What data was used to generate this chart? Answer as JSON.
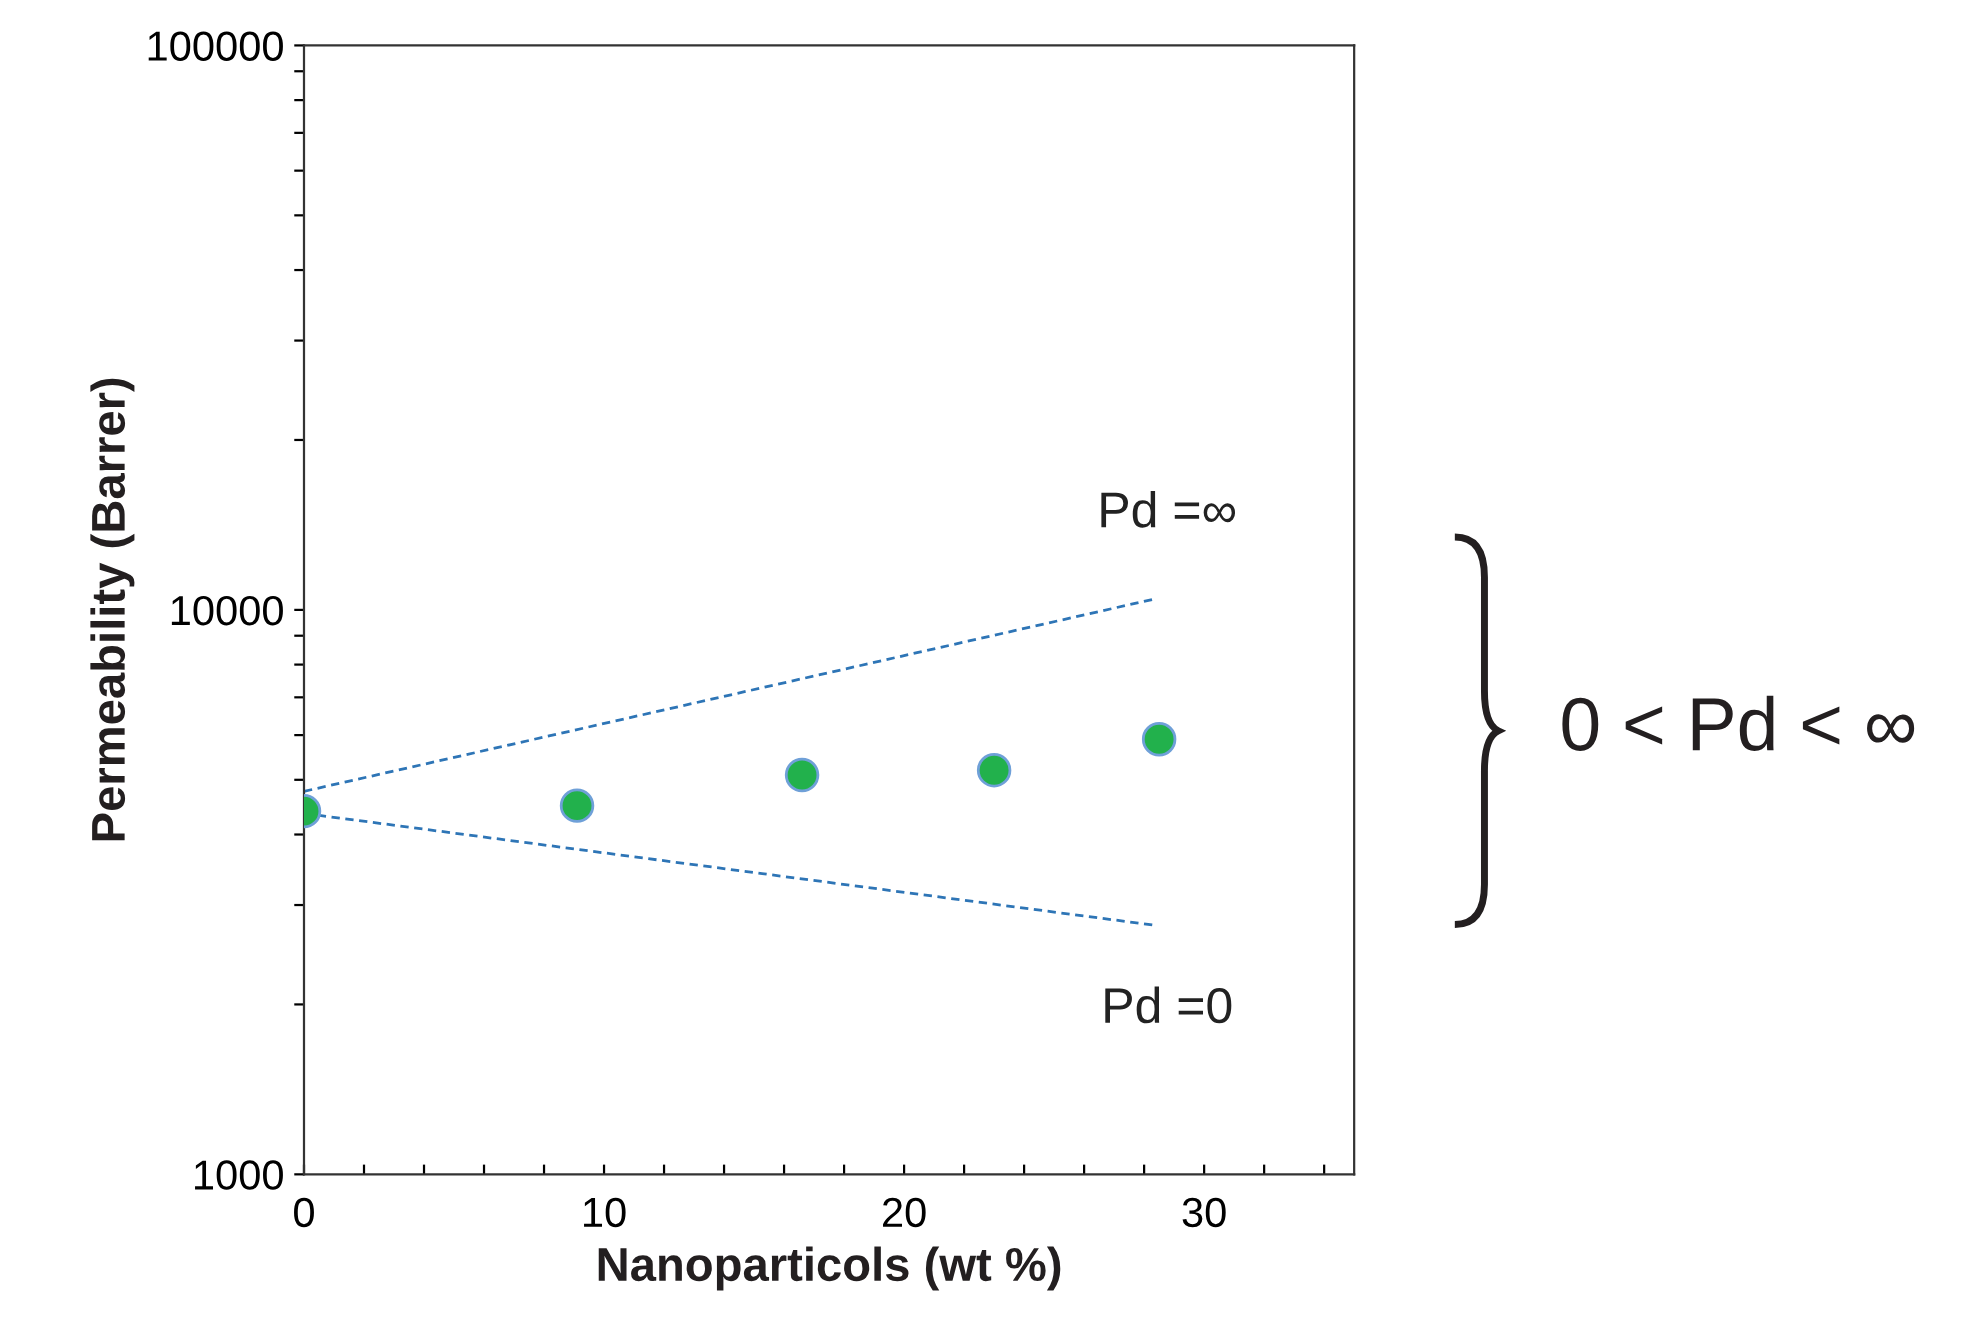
{
  "chart_data": {
    "type": "scatter",
    "xlabel": "Nanoparticols (wt %)",
    "ylabel": "Permeability (Barrer)",
    "log": "y",
    "xlim": [
      0,
      35
    ],
    "ylim": [
      1000,
      100000
    ],
    "xticks": [
      0,
      {
        "value": 2,
        "label": null
      },
      {
        "value": 4,
        "label": null
      },
      {
        "value": 6,
        "label": null
      },
      {
        "value": 8,
        "label": null
      },
      10,
      {
        "value": 12,
        "label": null
      },
      {
        "value": 14,
        "label": null
      },
      {
        "value": 16,
        "label": null
      },
      {
        "value": 18,
        "label": null
      },
      20,
      {
        "value": 22,
        "label": null
      },
      {
        "value": 24,
        "label": null
      },
      {
        "value": 26,
        "label": null
      },
      {
        "value": 28,
        "label": null
      },
      30,
      {
        "value": 32,
        "label": null
      },
      {
        "value": 34,
        "label": null
      }
    ],
    "yticks": [
      1000,
      {
        "value": 2000,
        "label": null
      },
      {
        "value": 3000,
        "label": null
      },
      {
        "value": 4000,
        "label": null
      },
      {
        "value": 5000,
        "label": null
      },
      {
        "value": 6000,
        "label": null
      },
      {
        "value": 7000,
        "label": null
      },
      {
        "value": 8000,
        "label": null
      },
      {
        "value": 9000,
        "label": null
      },
      10000,
      {
        "value": 20000,
        "label": null
      },
      {
        "value": 30000,
        "label": null
      },
      {
        "value": 40000,
        "label": null
      },
      {
        "value": 50000,
        "label": null
      },
      {
        "value": 60000,
        "label": null
      },
      {
        "value": 70000,
        "label": null
      },
      {
        "value": 80000,
        "label": null
      },
      {
        "value": 90000,
        "label": null
      },
      100000
    ],
    "grid": false,
    "legend": false,
    "series": [
      {
        "type": "line",
        "name": "Pd =∞",
        "color": "#2e75b6",
        "line_style": "dashed",
        "marker": "none",
        "x": [
          0,
          28.4
        ],
        "values": [
          4770,
          10470
        ]
      },
      {
        "type": "line",
        "name": "Pd =0",
        "color": "#2e75b6",
        "line_style": "dashed",
        "marker": "none",
        "x": [
          0,
          28.4
        ],
        "values": [
          4360,
          2760
        ]
      },
      {
        "color": "#22b14c",
        "marker": "circle",
        "x": [
          0,
          9.1,
          16.6,
          23.0,
          28.5
        ],
        "values": [
          4400,
          4500,
          5100,
          5200,
          5900
        ]
      }
    ],
    "annotations": [
      "0 < Pd < ∞"
    ]
  }
}
